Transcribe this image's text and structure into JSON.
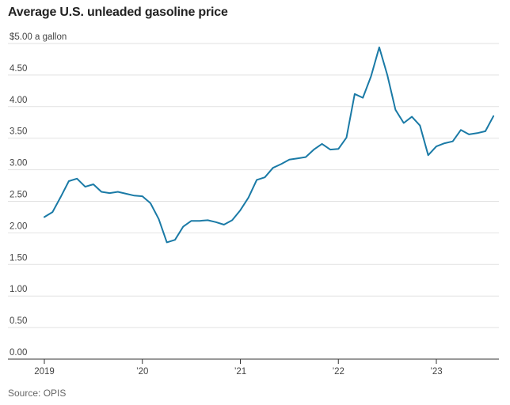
{
  "header": {
    "title": "Average U.S. unleaded gasoline price"
  },
  "footer": {
    "source": "Source: OPIS"
  },
  "chart_data": {
    "type": "line",
    "title": "Average U.S. unleaded gasoline price",
    "ylabel": "$ a gallon",
    "ylim": [
      0,
      5
    ],
    "y_ticks": [
      0,
      0.5,
      1,
      1.5,
      2,
      2.5,
      3,
      3.5,
      4,
      4.5,
      5
    ],
    "y_tick_labels": [
      "0.00",
      "0.50",
      "1.00",
      "1.50",
      "2.00",
      "2.50",
      "3.00",
      "3.50",
      "4.00",
      "4.50",
      "$5.00 a gallon"
    ],
    "x_ticks": [
      2019,
      2020,
      2021,
      2022,
      2023
    ],
    "x_tick_labels": [
      "2019",
      "’20",
      "’21",
      "’22",
      "’23"
    ],
    "x_range": [
      2018.92,
      2023.63
    ],
    "grid": true,
    "line_color": "#1a7aa6",
    "series": [
      {
        "name": "Average U.S. unleaded gasoline price",
        "x": [
          2019.0,
          2019.083,
          2019.167,
          2019.25,
          2019.333,
          2019.417,
          2019.5,
          2019.583,
          2019.667,
          2019.75,
          2019.833,
          2019.917,
          2020.0,
          2020.083,
          2020.167,
          2020.25,
          2020.333,
          2020.417,
          2020.5,
          2020.583,
          2020.667,
          2020.75,
          2020.833,
          2020.917,
          2021.0,
          2021.083,
          2021.167,
          2021.25,
          2021.333,
          2021.417,
          2021.5,
          2021.583,
          2021.667,
          2021.75,
          2021.833,
          2021.917,
          2022.0,
          2022.083,
          2022.167,
          2022.25,
          2022.333,
          2022.417,
          2022.5,
          2022.583,
          2022.667,
          2022.75,
          2022.833,
          2022.917,
          2023.0,
          2023.083,
          2023.167,
          2023.25,
          2023.333,
          2023.417,
          2023.5,
          2023.583
        ],
        "values": [
          2.25,
          2.33,
          2.57,
          2.82,
          2.86,
          2.73,
          2.77,
          2.65,
          2.63,
          2.65,
          2.62,
          2.59,
          2.58,
          2.47,
          2.22,
          1.85,
          1.89,
          2.1,
          2.19,
          2.19,
          2.2,
          2.17,
          2.13,
          2.2,
          2.36,
          2.56,
          2.84,
          2.88,
          3.03,
          3.09,
          3.16,
          3.18,
          3.2,
          3.32,
          3.41,
          3.32,
          3.33,
          3.51,
          4.2,
          4.14,
          4.48,
          4.94,
          4.5,
          3.95,
          3.74,
          3.84,
          3.7,
          3.23,
          3.37,
          3.42,
          3.45,
          3.63,
          3.56,
          3.58,
          3.61,
          3.85
        ]
      }
    ]
  }
}
